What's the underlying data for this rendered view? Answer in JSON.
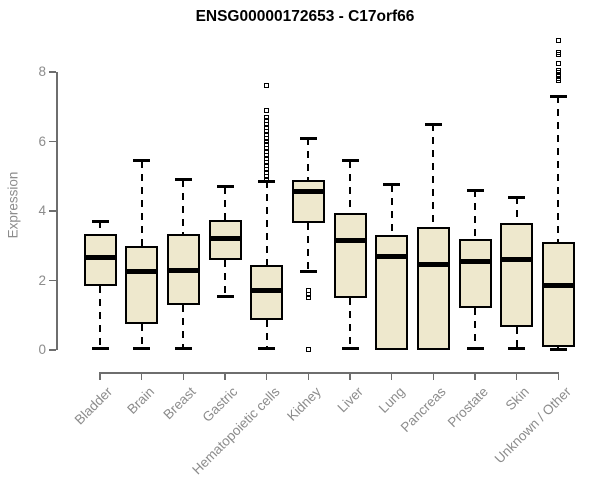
{
  "window": {
    "title": "ENSG00000172653 - C17orf66"
  },
  "chart_data": {
    "type": "boxplot",
    "title": "ENSG00000172653 - C17orf66",
    "xlabel": "",
    "ylabel": "Expression",
    "ylim": [
      0,
      9
    ],
    "yticks": [
      0,
      2,
      4,
      6,
      8
    ],
    "grid": false,
    "legend": "none",
    "box_fill_color": "#EEE8CD",
    "box_line_color": "#000000",
    "axis_color": "#6e6e6e",
    "axis_label_color": "#8c8c8c",
    "title_color": "#000000",
    "categories": [
      "Bladder",
      "Brain",
      "Breast",
      "Gastric",
      "Hematopoietic cells",
      "Kidney",
      "Liver",
      "Lung",
      "Pancreas",
      "Prostate",
      "Skin",
      "Unknown / Other"
    ],
    "boxes": [
      {
        "category": "Bladder",
        "low": 0.05,
        "q1": 1.85,
        "median": 2.65,
        "q3": 3.35,
        "high": 3.7,
        "outliers": []
      },
      {
        "category": "Brain",
        "low": 0.05,
        "q1": 0.75,
        "median": 2.25,
        "q3": 3.0,
        "high": 5.45,
        "outliers": []
      },
      {
        "category": "Breast",
        "low": 0.05,
        "q1": 1.3,
        "median": 2.3,
        "q3": 3.35,
        "high": 4.9,
        "outliers": []
      },
      {
        "category": "Gastric",
        "low": 1.55,
        "q1": 2.6,
        "median": 3.2,
        "q3": 3.75,
        "high": 4.7,
        "outliers": []
      },
      {
        "category": "Hematopoietic cells",
        "low": 0.05,
        "q1": 0.85,
        "median": 1.7,
        "q3": 2.45,
        "high": 4.85,
        "outliers": [
          7.6,
          6.9,
          6.7,
          6.6,
          6.5,
          6.4,
          6.3,
          6.2,
          6.1,
          6.0,
          5.9,
          5.8,
          5.7,
          5.6,
          5.5,
          5.4,
          5.3,
          5.2,
          5.1,
          5.0,
          4.9
        ]
      },
      {
        "category": "Kidney",
        "low": 2.25,
        "q1": 3.65,
        "median": 4.55,
        "q3": 4.9,
        "high": 6.1,
        "outliers": [
          1.7,
          1.6,
          1.5,
          0.02
        ]
      },
      {
        "category": "Liver",
        "low": 0.05,
        "q1": 1.5,
        "median": 3.15,
        "q3": 3.95,
        "high": 5.45,
        "outliers": []
      },
      {
        "category": "Lung",
        "low": 0.0,
        "q1": 0.0,
        "median": 2.7,
        "q3": 3.3,
        "high": 4.75,
        "outliers": []
      },
      {
        "category": "Pancreas",
        "low": 0.0,
        "q1": 0.0,
        "median": 2.45,
        "q3": 3.55,
        "high": 6.5,
        "outliers": []
      },
      {
        "category": "Prostate",
        "low": 0.05,
        "q1": 1.2,
        "median": 2.55,
        "q3": 3.2,
        "high": 4.6,
        "outliers": []
      },
      {
        "category": "Skin",
        "low": 0.05,
        "q1": 0.65,
        "median": 2.6,
        "q3": 3.65,
        "high": 4.4,
        "outliers": []
      },
      {
        "category": "Unknown / Other",
        "low": 0.02,
        "q1": 0.1,
        "median": 1.85,
        "q3": 3.1,
        "high": 7.3,
        "outliers": [
          8.9,
          8.55,
          8.5,
          8.25,
          8.05,
          8.0,
          7.9,
          7.8,
          7.75
        ]
      }
    ]
  }
}
